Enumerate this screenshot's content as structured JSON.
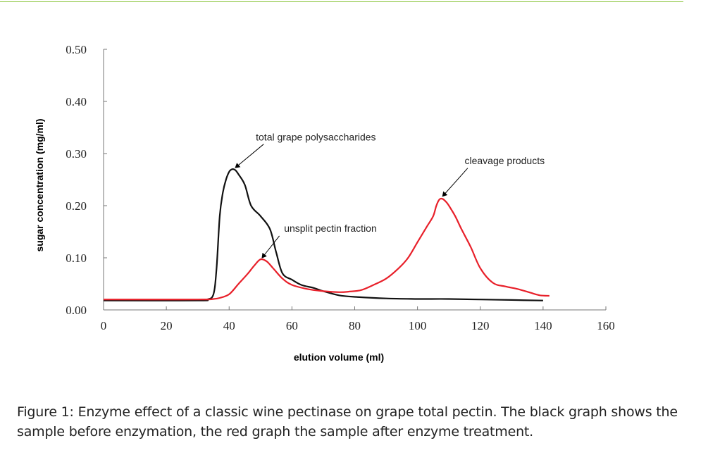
{
  "chart_data": {
    "type": "line",
    "xlabel": "elution volume (ml)",
    "ylabel": "sugar concentration (mg/ml)",
    "xlim": [
      0,
      160
    ],
    "ylim": [
      0,
      0.5
    ],
    "x_ticks": [
      "0",
      "20",
      "40",
      "60",
      "80",
      "100",
      "120",
      "140",
      "160"
    ],
    "y_ticks": [
      "0.00",
      "0.10",
      "0.20",
      "0.30",
      "0.40",
      "0.50"
    ],
    "grid": false,
    "series": [
      {
        "color": "#111111",
        "points": [
          [
            0,
            0.018
          ],
          [
            30,
            0.018
          ],
          [
            33,
            0.02
          ],
          [
            35,
            0.03
          ],
          [
            36,
            0.08
          ],
          [
            37,
            0.18
          ],
          [
            38,
            0.225
          ],
          [
            39,
            0.25
          ],
          [
            40,
            0.265
          ],
          [
            41,
            0.27
          ],
          [
            42,
            0.268
          ],
          [
            43,
            0.26
          ],
          [
            45,
            0.24
          ],
          [
            47,
            0.2
          ],
          [
            50,
            0.18
          ],
          [
            53,
            0.155
          ],
          [
            55,
            0.11
          ],
          [
            57,
            0.07
          ],
          [
            60,
            0.058
          ],
          [
            63,
            0.048
          ],
          [
            67,
            0.042
          ],
          [
            70,
            0.036
          ],
          [
            75,
            0.028
          ],
          [
            80,
            0.025
          ],
          [
            90,
            0.022
          ],
          [
            100,
            0.021
          ],
          [
            110,
            0.021
          ],
          [
            120,
            0.02
          ],
          [
            130,
            0.019
          ],
          [
            140,
            0.018
          ]
        ]
      },
      {
        "color": "#e8202a",
        "points": [
          [
            0,
            0.02
          ],
          [
            30,
            0.02
          ],
          [
            35,
            0.021
          ],
          [
            37,
            0.023
          ],
          [
            40,
            0.03
          ],
          [
            43,
            0.05
          ],
          [
            46,
            0.07
          ],
          [
            48,
            0.085
          ],
          [
            50,
            0.097
          ],
          [
            52,
            0.093
          ],
          [
            54,
            0.08
          ],
          [
            57,
            0.06
          ],
          [
            60,
            0.048
          ],
          [
            65,
            0.04
          ],
          [
            70,
            0.036
          ],
          [
            75,
            0.034
          ],
          [
            78,
            0.035
          ],
          [
            82,
            0.038
          ],
          [
            86,
            0.048
          ],
          [
            90,
            0.06
          ],
          [
            94,
            0.08
          ],
          [
            97,
            0.1
          ],
          [
            100,
            0.13
          ],
          [
            103,
            0.16
          ],
          [
            105,
            0.18
          ],
          [
            106,
            0.2
          ],
          [
            107,
            0.212
          ],
          [
            108,
            0.213
          ],
          [
            109,
            0.208
          ],
          [
            110,
            0.2
          ],
          [
            112,
            0.18
          ],
          [
            114,
            0.155
          ],
          [
            117,
            0.12
          ],
          [
            120,
            0.08
          ],
          [
            124,
            0.052
          ],
          [
            128,
            0.045
          ],
          [
            132,
            0.04
          ],
          [
            136,
            0.033
          ],
          [
            139,
            0.028
          ],
          [
            142,
            0.027
          ]
        ]
      }
    ],
    "annotations": [
      {
        "text": "total grape polysaccharides",
        "text_x": 48.5,
        "text_y": 0.325,
        "target_x": 42,
        "target_y": 0.273,
        "line_from_x": 51,
        "line_from_y": 0.318
      },
      {
        "text": "unsplit pectin fraction",
        "text_x": 57.5,
        "text_y": 0.15,
        "target_x": 50.5,
        "target_y": 0.1,
        "line_from_x": 56,
        "line_from_y": 0.142
      },
      {
        "text": "cleavage products",
        "text_x": 115,
        "text_y": 0.28,
        "target_x": 108,
        "target_y": 0.218,
        "line_from_x": 116,
        "line_from_y": 0.272
      }
    ]
  },
  "caption": {
    "label": "Figure 1",
    "text": ": Enzyme effect of a classic wine pectinase on grape total pectin. The black graph shows the sample before enzymation, the red graph the sample after enzyme treatment."
  }
}
